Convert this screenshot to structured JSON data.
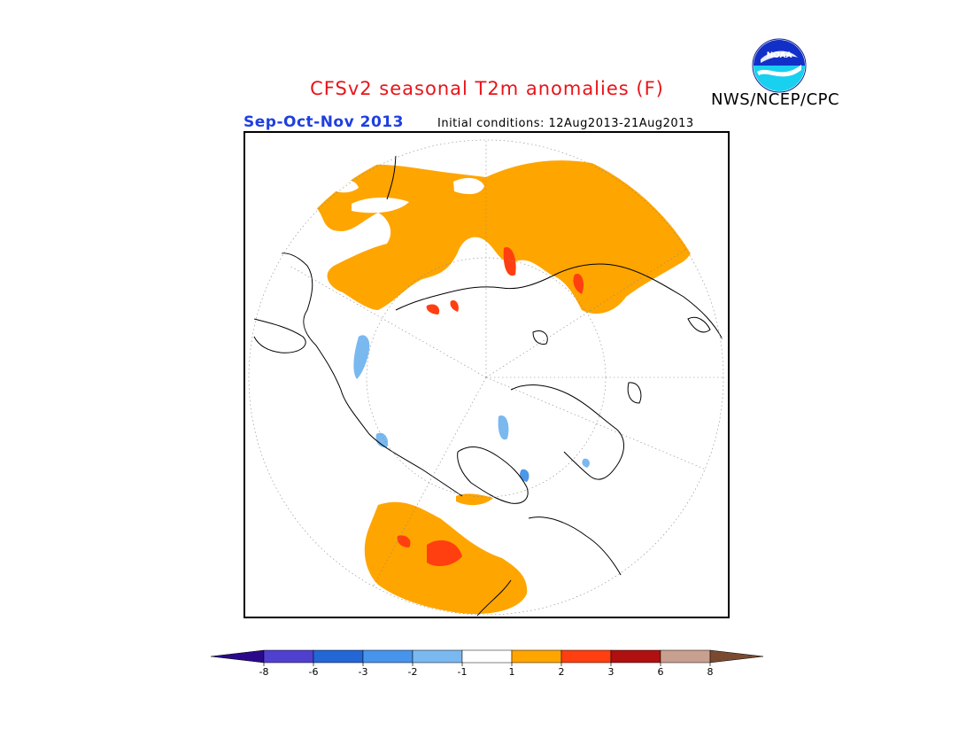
{
  "title": "CFSv2 seasonal T2m anomalies (F)",
  "season": "Sep-Oct-Nov 2013",
  "initial_conditions": "Initial conditions: 12Aug2013-21Aug2013",
  "agency": "NWS/NCEP/CPC",
  "logo": {
    "icon": "noaa-logo",
    "text": "NOAA"
  },
  "colors": {
    "warm_1_2": "#ffa500",
    "warm_2_3": "#ff3f10",
    "cold_1_2": "#7ab8f0",
    "cold_2_3": "#4c97e8",
    "coast": "#000000"
  },
  "colorbar": {
    "colors": [
      "#2a0a8a",
      "#5040d0",
      "#2366d6",
      "#4794ec",
      "#7ab8f0",
      "#ffffff",
      "#ffa500",
      "#ff3f10",
      "#b01010",
      "#c8a090",
      "#7a4a30"
    ],
    "labels": [
      "-8",
      "-6",
      "-3",
      "-2",
      "-1",
      "1",
      "2",
      "3",
      "6",
      "8"
    ]
  }
}
